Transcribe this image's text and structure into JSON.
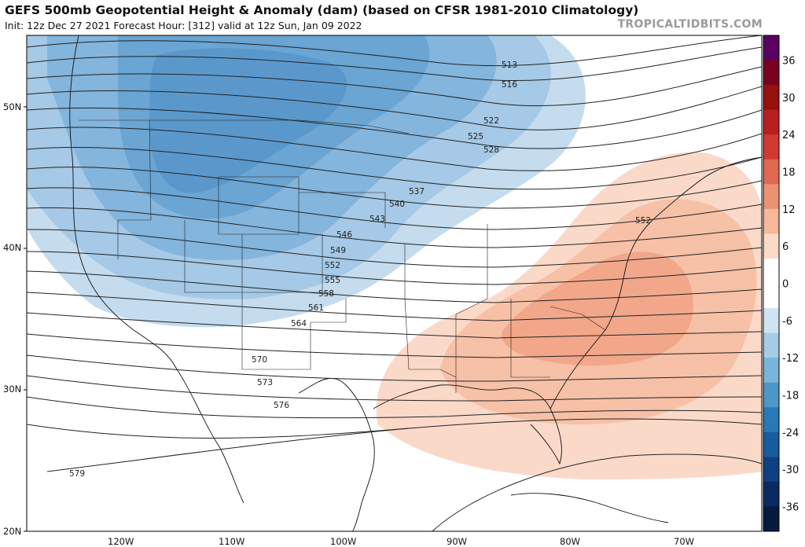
{
  "header": {
    "title": "GEFS 500mb Geopotential Height & Anomaly (dam) (based on CFSR 1981-2010 Climatology)",
    "subtitle": "Init: 12z Dec 27 2021   Forecast Hour: [312]   valid at 12z Sun, Jan 09 2022",
    "brand": "TROPICALTIDBITS.COM"
  },
  "map": {
    "lon_range": [
      -128,
      -63
    ],
    "lat_range": [
      20,
      55
    ],
    "lat_labels": [
      "50N",
      "40N",
      "30N",
      "20N"
    ],
    "lon_labels": [
      "120W",
      "110W",
      "100W",
      "90W",
      "80W",
      "70W"
    ],
    "contour_labels": [
      "513",
      "516",
      "522",
      "525",
      "528",
      "537",
      "540",
      "543",
      "546",
      "549",
      "552",
      "555",
      "558",
      "561",
      "564",
      "570",
      "573",
      "576",
      "579",
      "552"
    ]
  },
  "colorbar": {
    "ticks": [
      "36",
      "30",
      "24",
      "18",
      "12",
      "6",
      "0",
      "-6",
      "-12",
      "-18",
      "-24",
      "-30",
      "-36"
    ],
    "colors": [
      "#5a0060",
      "#7a0020",
      "#961010",
      "#b82020",
      "#d03a30",
      "#e06850",
      "#ec9272",
      "#f5b89c",
      "#fbdac8",
      "#ffffff",
      "#ffffff",
      "#cfe4f2",
      "#a6cde6",
      "#7ab4d9",
      "#4f96c8",
      "#2b78b6",
      "#1a5a9e",
      "#103f80",
      "#0a2a60",
      "#061a40"
    ]
  },
  "colors": {
    "negative_anomaly": "#5f9fcf",
    "positive_anomaly": "#f29c80",
    "contour": "#222222"
  }
}
